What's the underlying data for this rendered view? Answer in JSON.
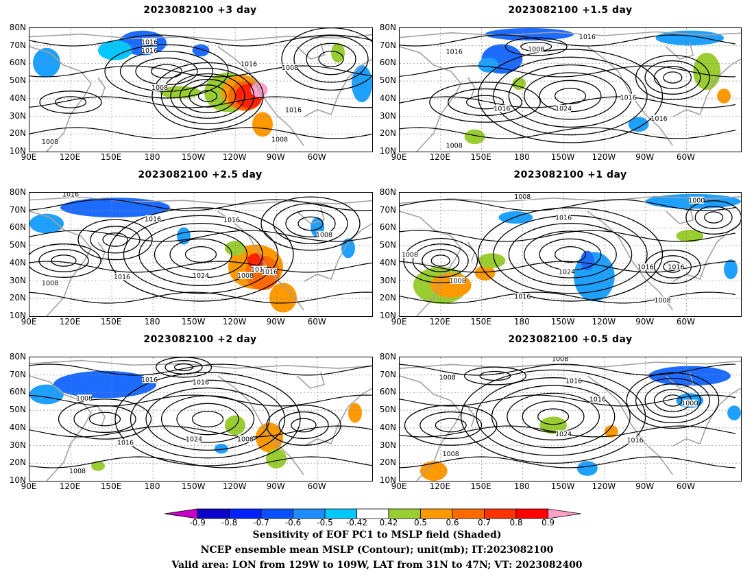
{
  "panels": [
    {
      "title": "2023082100  +3 day",
      "contour_labels": [
        "1016",
        "1016",
        "1016",
        "1008",
        "1008",
        "1016",
        "1008",
        "1008"
      ]
    },
    {
      "title": "2023082100  +1.5 day",
      "contour_labels": [
        "1016",
        "1016",
        "1008",
        "1024",
        "1016",
        "1016",
        "1016",
        "1008"
      ]
    },
    {
      "title": "2023082100  +2.5 day",
      "contour_labels": [
        "1016",
        "1016",
        "1016",
        "1008",
        "1008",
        "1016",
        "1024",
        "1008",
        "1016",
        "1016"
      ]
    },
    {
      "title": "2023082100  +1 day",
      "contour_labels": [
        "1008",
        "1016",
        "1000",
        "1008",
        "1008",
        "1024",
        "1016",
        "1016",
        "1016",
        "1008"
      ]
    },
    {
      "title": "2023082100  +2 day",
      "contour_labels": [
        "1016",
        "1016",
        "1008",
        "1024",
        "1016",
        "1008",
        "1008"
      ]
    },
    {
      "title": "2023082100  +0.5 day",
      "contour_labels": [
        "1008",
        "1008",
        "1016",
        "1016",
        "1000",
        "1024",
        "1016",
        "1008"
      ]
    }
  ],
  "lat_labels": [
    "80N",
    "70N",
    "60N",
    "50N",
    "40N",
    "30N",
    "20N",
    "10N"
  ],
  "lon_labels": [
    "90E",
    "120E",
    "150E",
    "180",
    "150W",
    "120W",
    "90W",
    "60W"
  ],
  "colorbar": {
    "labels": [
      "-0.9",
      "-0.8",
      "-0.7",
      "-0.6",
      "-0.5",
      "-0.42",
      "0.42",
      "0.5",
      "0.6",
      "0.7",
      "0.8",
      "0.9"
    ],
    "colors": [
      "#0a00c8",
      "#0022ff",
      "#0a50ff",
      "#1e8cff",
      "#00c8ff",
      "#ffffff",
      "#9acd32",
      "#ff9900",
      "#ff6a00",
      "#ff3300",
      "#ff0000"
    ],
    "low_color": "#c800c8",
    "high_color": "#ff9ec8"
  },
  "caption": {
    "line1": "Sensitivity of EOF PC1 to MSLP field (Shaded)",
    "line2": "NCEP ensemble mean MSLP (Contour); unit(mb); IT:2023082100",
    "line3": "Valid area: LON from 129W to 109W, LAT from 31N to 47N; VT: 2023082400"
  },
  "shading_colors": {
    "blue_strong": "#1e6cff",
    "blue_light": "#1ea0ff",
    "cyan": "#00c8ff",
    "green": "#9acd32",
    "orange": "#ff9900",
    "dark_orange": "#ff6a00",
    "red": "#ff2200",
    "pink": "#ff9ec8"
  }
}
